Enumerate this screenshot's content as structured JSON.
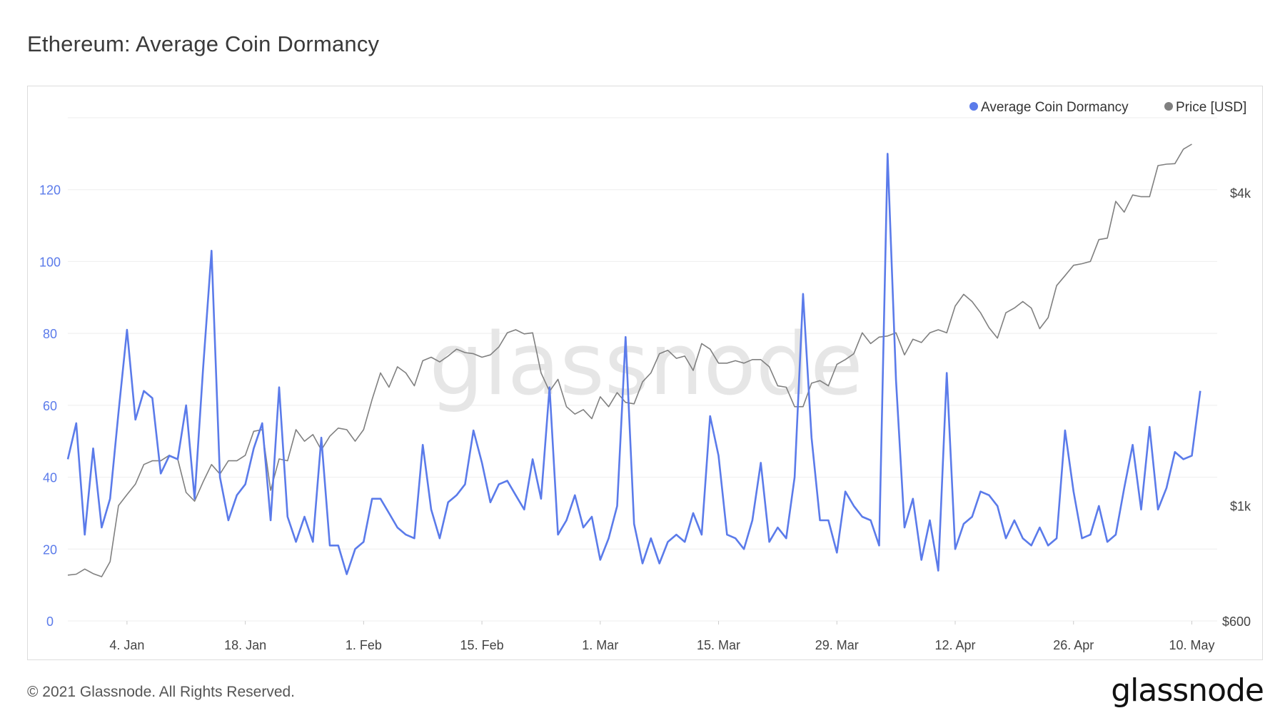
{
  "title": "Ethereum: Average Coin Dormancy",
  "footer": "© 2021 Glassnode. All Rights Reserved.",
  "brand": "glassnode",
  "watermark": "glassnode",
  "colors": {
    "dormancy": "#5b7bea",
    "price": "#808080",
    "grid": "#eeeeee",
    "axis_left": "#5b7bea"
  },
  "chart_data": {
    "type": "line",
    "legend_position": "top-right",
    "grid": true,
    "x_start": "2020-12-28",
    "x_end": "2021-05-13",
    "x_ticks": [
      {
        "label": "4. Jan",
        "date": "2021-01-04"
      },
      {
        "label": "18. Jan",
        "date": "2021-01-18"
      },
      {
        "label": "1. Feb",
        "date": "2021-02-01"
      },
      {
        "label": "15. Feb",
        "date": "2021-02-15"
      },
      {
        "label": "1. Mar",
        "date": "2021-03-01"
      },
      {
        "label": "15. Mar",
        "date": "2021-03-15"
      },
      {
        "label": "29. Mar",
        "date": "2021-03-29"
      },
      {
        "label": "12. Apr",
        "date": "2021-04-12"
      },
      {
        "label": "26. Apr",
        "date": "2021-04-26"
      },
      {
        "label": "10. May",
        "date": "2021-05-10"
      }
    ],
    "y_left": {
      "ticks": [
        "0",
        "20",
        "40",
        "60",
        "80",
        "100",
        "120"
      ],
      "values": [
        0,
        20,
        40,
        60,
        80,
        100,
        120
      ],
      "range": [
        0,
        140
      ]
    },
    "y_right": {
      "ticks": [
        "$600",
        "$1k",
        "$4k"
      ],
      "values": [
        600,
        1000,
        4000
      ],
      "scale": "log"
    },
    "series": [
      {
        "name": "Average Coin Dormancy",
        "axis": "left",
        "color": "#5b7bea",
        "values": [
          45,
          55,
          24,
          48,
          26,
          34,
          58,
          81,
          56,
          64,
          62,
          41,
          46,
          45,
          60,
          34,
          70,
          103,
          40,
          28,
          35,
          38,
          48,
          55,
          28,
          65,
          29,
          22,
          29,
          22,
          51,
          21,
          21,
          13,
          20,
          22,
          34,
          34,
          30,
          26,
          24,
          23,
          49,
          31,
          23,
          33,
          35,
          38,
          53,
          44,
          33,
          38,
          39,
          35,
          31,
          45,
          34,
          65,
          24,
          28,
          35,
          26,
          29,
          17,
          23,
          32,
          79,
          27,
          16,
          23,
          16,
          22,
          24,
          22,
          30,
          24,
          57,
          46,
          24,
          23,
          20,
          28,
          44,
          22,
          26,
          23,
          40,
          91,
          51,
          28,
          28,
          19,
          36,
          32,
          29,
          28,
          21,
          130,
          67,
          26,
          34,
          17,
          28,
          14,
          69,
          20,
          27,
          29,
          36,
          35,
          32,
          23,
          28,
          23,
          21,
          26,
          21,
          23,
          53,
          36,
          23,
          24,
          32,
          22,
          24,
          37,
          49,
          31,
          54,
          31,
          37,
          47,
          45,
          46,
          64
        ]
      },
      {
        "name": "Price [USD]",
        "axis": "right",
        "color": "#808080",
        "values": [
          735,
          738,
          755,
          740,
          730,
          780,
          1000,
          1050,
          1100,
          1200,
          1220,
          1220,
          1250,
          1230,
          1060,
          1020,
          1110,
          1200,
          1150,
          1220,
          1220,
          1250,
          1390,
          1400,
          1070,
          1230,
          1220,
          1400,
          1330,
          1370,
          1280,
          1360,
          1410,
          1400,
          1330,
          1400,
          1600,
          1800,
          1690,
          1850,
          1800,
          1700,
          1900,
          1930,
          1890,
          1940,
          2000,
          1970,
          1960,
          1930,
          1950,
          2020,
          2150,
          2180,
          2140,
          2150,
          1800,
          1660,
          1750,
          1550,
          1500,
          1530,
          1470,
          1620,
          1550,
          1650,
          1580,
          1570,
          1730,
          1800,
          1960,
          1990,
          1920,
          1940,
          1820,
          2050,
          2000,
          1880,
          1880,
          1900,
          1880,
          1910,
          1910,
          1850,
          1700,
          1690,
          1550,
          1550,
          1720,
          1740,
          1700,
          1870,
          1910,
          1960,
          2150,
          2050,
          2110,
          2120,
          2150,
          1950,
          2090,
          2060,
          2150,
          2180,
          2150,
          2420,
          2550,
          2470,
          2350,
          2200,
          2100,
          2350,
          2400,
          2470,
          2400,
          2190,
          2300,
          2650,
          2770,
          2900,
          2920,
          2950,
          3250,
          3270,
          3850,
          3670,
          3960,
          3930,
          3930,
          4510,
          4540,
          4550,
          4850,
          4960
        ]
      }
    ]
  }
}
